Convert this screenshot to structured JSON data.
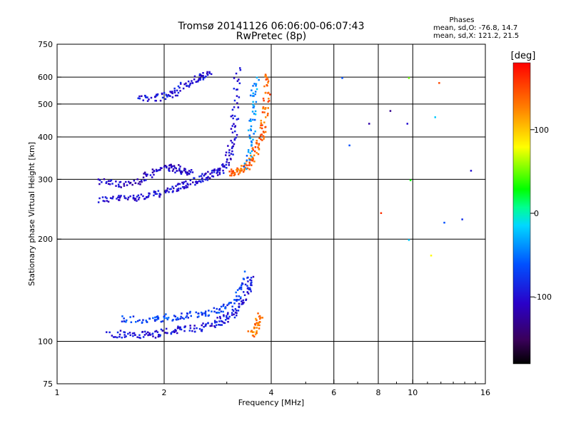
{
  "chart_data": {
    "type": "scatter",
    "title": "Tromsø 20141126 06:06:00-06:07:43",
    "subtitle": "RwPretec (8p)",
    "xlabel": "Frequency [MHz]",
    "ylabel": "Stationary phase Virtual Height [km]",
    "xscale": "log",
    "yscale": "log",
    "xlim": [
      1,
      16
    ],
    "ylim": [
      75,
      750
    ],
    "xticks": [
      1,
      2,
      4,
      6,
      8,
      10,
      16
    ],
    "yticks": [
      75,
      100,
      200,
      300,
      400,
      500,
      600,
      750
    ],
    "grid_x": [
      2,
      4,
      6,
      8,
      10
    ],
    "grid_y": [
      100,
      200,
      300,
      400,
      500,
      600
    ],
    "stats": {
      "heading": "Phases",
      "line1": "mean, sd,O: -76.8, 14.7",
      "line2": "mean, sd,X: 121.2, 21.5"
    },
    "colorbar": {
      "label": "[deg]",
      "min": -180,
      "max": 180,
      "ticks": [
        100,
        0,
        -100
      ],
      "colormap": "rainbow (black-purple-blue-cyan-green-yellow-orange-red)"
    },
    "traces": [
      {
        "region": "F O-mode lower trace",
        "phase": -100,
        "points": [
          [
            1.3,
            263
          ],
          [
            1.5,
            265
          ],
          [
            1.7,
            268
          ],
          [
            1.9,
            272
          ],
          [
            2.1,
            282
          ],
          [
            2.3,
            292
          ],
          [
            2.5,
            300
          ],
          [
            2.7,
            312
          ],
          [
            2.85,
            320
          ],
          [
            3.0,
            340
          ],
          [
            3.1,
            390
          ],
          [
            3.15,
            480
          ],
          [
            3.2,
            640
          ]
        ]
      },
      {
        "region": "F O-mode upper trace",
        "phase": -105,
        "points": [
          [
            1.3,
            300
          ],
          [
            1.5,
            290
          ],
          [
            1.7,
            298
          ],
          [
            1.9,
            320
          ],
          [
            2.1,
            330
          ],
          [
            2.2,
            320
          ],
          [
            2.4,
            315
          ]
        ]
      },
      {
        "region": "F X-mode trace",
        "phase": 140,
        "points": [
          [
            3.05,
            315
          ],
          [
            3.2,
            318
          ],
          [
            3.4,
            330
          ],
          [
            3.55,
            355
          ],
          [
            3.7,
            390
          ],
          [
            3.8,
            440
          ],
          [
            3.85,
            520
          ],
          [
            3.9,
            630
          ]
        ]
      },
      {
        "region": "F cyan spread",
        "phase": -40,
        "points": [
          [
            3.4,
            330
          ],
          [
            3.5,
            410
          ],
          [
            3.55,
            500
          ],
          [
            3.6,
            600
          ]
        ]
      },
      {
        "region": "Upper extension",
        "phase": -95,
        "points": [
          [
            1.7,
            520
          ],
          [
            1.9,
            525
          ],
          [
            2.1,
            540
          ],
          [
            2.3,
            575
          ],
          [
            2.5,
            600
          ],
          [
            2.7,
            620
          ]
        ]
      },
      {
        "region": "E O-mode trace",
        "phase": -95,
        "points": [
          [
            1.4,
            106
          ],
          [
            1.6,
            105
          ],
          [
            1.8,
            105
          ],
          [
            2.0,
            107
          ],
          [
            2.2,
            109
          ],
          [
            2.5,
            110
          ],
          [
            2.8,
            114
          ],
          [
            3.0,
            118
          ],
          [
            3.2,
            125
          ],
          [
            3.4,
            140
          ],
          [
            3.5,
            155
          ]
        ]
      },
      {
        "region": "E upper trace",
        "phase": -70,
        "points": [
          [
            1.5,
            118
          ],
          [
            1.8,
            116
          ],
          [
            2.0,
            118
          ],
          [
            2.3,
            120
          ],
          [
            2.6,
            122
          ],
          [
            2.9,
            126
          ],
          [
            3.2,
            135
          ],
          [
            3.4,
            160
          ]
        ]
      },
      {
        "region": "E X-mode",
        "phase": 130,
        "points": [
          [
            3.5,
            106
          ],
          [
            3.6,
            112
          ],
          [
            3.7,
            120
          ]
        ]
      }
    ]
  }
}
